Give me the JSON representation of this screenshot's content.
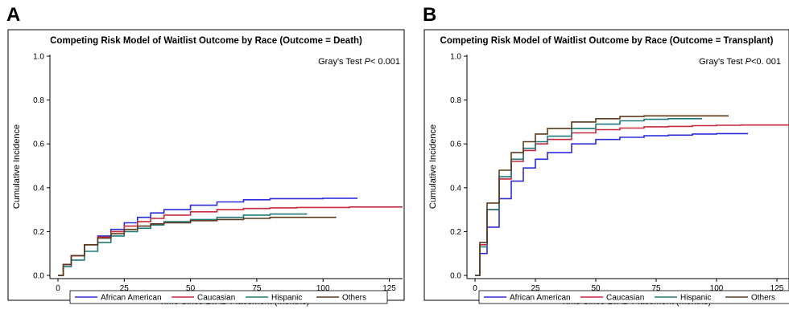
{
  "panels": [
    {
      "letter": "A",
      "chart_data": {
        "type": "line",
        "title": "Competing Risk Model of Waitlist Outcome by Race (Outcome = Death)",
        "annotation": {
          "text": "Gray's Test ",
          "p": "P",
          "rest": "< 0.001"
        },
        "xlabel": "Time Since LVAD Placement (Months)",
        "ylabel": "Cumulative Incidence",
        "xlim": [
          0,
          130
        ],
        "ylim": [
          0,
          1.0
        ],
        "xticks": [
          0,
          25,
          50,
          75,
          100,
          125
        ],
        "yticks": [
          0.0,
          0.2,
          0.4,
          0.6,
          0.8,
          1.0
        ],
        "ytick_labels": [
          "0.0",
          "0.2",
          "0.4",
          "0.6",
          "0.8",
          "1.0"
        ],
        "legend": "bottom",
        "series": [
          {
            "name": "African American",
            "color": "#2b2bd9",
            "x": [
              0,
              2,
              5,
              10,
              15,
              20,
              25,
              30,
              35,
              40,
              50,
              60,
              70,
              80,
              90,
              100,
              113
            ],
            "y": [
              0,
              0.05,
              0.09,
              0.14,
              0.18,
              0.21,
              0.24,
              0.265,
              0.285,
              0.3,
              0.32,
              0.335,
              0.345,
              0.35,
              0.35,
              0.352,
              0.352
            ]
          },
          {
            "name": "Caucasian",
            "color": "#c8283c",
            "x": [
              0,
              2,
              5,
              10,
              15,
              20,
              25,
              30,
              35,
              40,
              50,
              60,
              70,
              80,
              90,
              100,
              110,
              120,
              130
            ],
            "y": [
              0,
              0.05,
              0.09,
              0.14,
              0.175,
              0.2,
              0.225,
              0.245,
              0.26,
              0.275,
              0.29,
              0.3,
              0.305,
              0.308,
              0.31,
              0.31,
              0.312,
              0.312,
              0.312
            ]
          },
          {
            "name": "Hispanic",
            "color": "#1f7a78",
            "x": [
              0,
              2,
              5,
              10,
              15,
              20,
              25,
              30,
              35,
              40,
              50,
              60,
              70,
              80,
              94
            ],
            "y": [
              0,
              0.04,
              0.07,
              0.11,
              0.15,
              0.18,
              0.2,
              0.215,
              0.23,
              0.245,
              0.255,
              0.265,
              0.275,
              0.28,
              0.28
            ]
          },
          {
            "name": "Others",
            "color": "#5c3a1a",
            "x": [
              0,
              2,
              5,
              10,
              15,
              20,
              25,
              30,
              35,
              40,
              50,
              60,
              70,
              80,
              90,
              105
            ],
            "y": [
              0,
              0.05,
              0.09,
              0.14,
              0.17,
              0.19,
              0.21,
              0.225,
              0.235,
              0.24,
              0.25,
              0.255,
              0.26,
              0.265,
              0.265,
              0.265
            ]
          }
        ]
      }
    },
    {
      "letter": "B",
      "chart_data": {
        "type": "line",
        "title": "Competing Risk Model of Waitlist Outcome by Race (Outcome = Transplant)",
        "annotation": {
          "text": "Gray's Test ",
          "p": "P",
          "rest": "<0. 001"
        },
        "xlabel": "Time Since LVAD Placement (Months)",
        "ylabel": "Cumulative Incidence",
        "xlim": [
          0,
          130
        ],
        "ylim": [
          0,
          1.0
        ],
        "xticks": [
          0,
          25,
          50,
          75,
          100,
          125
        ],
        "yticks": [
          0.0,
          0.2,
          0.4,
          0.6,
          0.8,
          1.0
        ],
        "ytick_labels": [
          "0.0",
          "0.2",
          "0.4",
          "0.6",
          "0.8",
          "1.0"
        ],
        "legend": "bottom",
        "series": [
          {
            "name": "African American",
            "color": "#2b2bd9",
            "x": [
              0,
              2,
              5,
              10,
              15,
              20,
              25,
              30,
              40,
              50,
              60,
              70,
              80,
              90,
              100,
              113
            ],
            "y": [
              0,
              0.1,
              0.22,
              0.35,
              0.43,
              0.49,
              0.53,
              0.56,
              0.6,
              0.62,
              0.63,
              0.637,
              0.64,
              0.645,
              0.647,
              0.647
            ]
          },
          {
            "name": "Caucasian",
            "color": "#c8283c",
            "x": [
              0,
              2,
              5,
              10,
              15,
              20,
              25,
              30,
              40,
              50,
              60,
              70,
              80,
              90,
              100,
              110,
              120,
              130
            ],
            "y": [
              0,
              0.14,
              0.3,
              0.44,
              0.52,
              0.57,
              0.6,
              0.62,
              0.65,
              0.665,
              0.672,
              0.678,
              0.68,
              0.683,
              0.685,
              0.686,
              0.686,
              0.686
            ]
          },
          {
            "name": "Hispanic",
            "color": "#1f7a78",
            "x": [
              0,
              2,
              5,
              10,
              15,
              20,
              25,
              30,
              40,
              50,
              60,
              70,
              80,
              94
            ],
            "y": [
              0,
              0.13,
              0.3,
              0.45,
              0.53,
              0.58,
              0.61,
              0.635,
              0.67,
              0.69,
              0.705,
              0.712,
              0.715,
              0.715
            ]
          },
          {
            "name": "Others",
            "color": "#5c3a1a",
            "x": [
              0,
              2,
              5,
              10,
              15,
              20,
              25,
              30,
              40,
              50,
              60,
              70,
              80,
              90,
              105
            ],
            "y": [
              0,
              0.15,
              0.33,
              0.48,
              0.56,
              0.61,
              0.645,
              0.67,
              0.7,
              0.715,
              0.725,
              0.728,
              0.728,
              0.728,
              0.728
            ]
          }
        ]
      }
    }
  ]
}
